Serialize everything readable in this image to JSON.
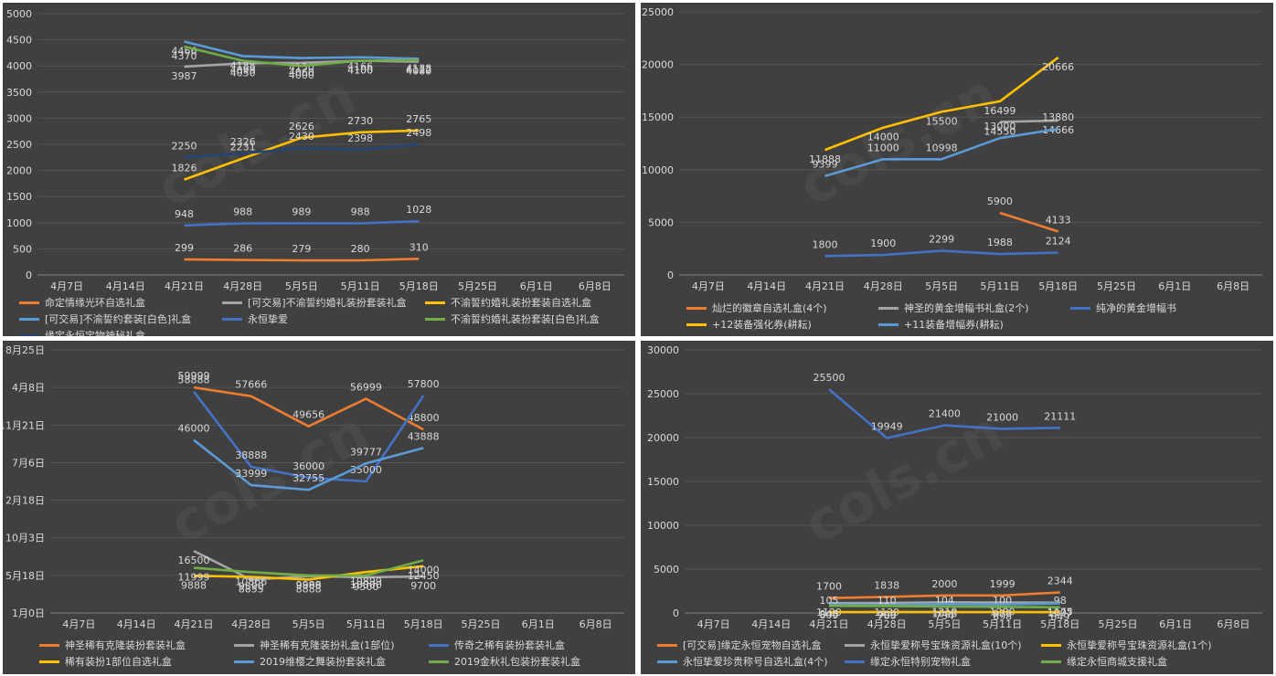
{
  "watermark": "cols.cn",
  "chart_data": [
    {
      "type": "line",
      "x": [
        "4月7日",
        "4月14日",
        "4月21日",
        "4月28日",
        "5月5日",
        "5月11日",
        "5月18日",
        "5月25日",
        "6月1日",
        "6月8日"
      ],
      "ylim": [
        0,
        5000
      ],
      "yticks": [
        "0",
        "500",
        "1000",
        "1500",
        "2000",
        "2500",
        "3000",
        "3500",
        "4000",
        "4500",
        "5000"
      ],
      "series": [
        {
          "name": "命定情缘光环自选礼盒",
          "color": "#ed7d31",
          "values": [
            null,
            null,
            299,
            286,
            279,
            280,
            310,
            null,
            null,
            null
          ]
        },
        {
          "name": "[可交易]不渝誓约婚礼装扮套装礼盒",
          "color": "#a5a5a5",
          "values": [
            null,
            null,
            3987,
            4050,
            4060,
            4100,
            4080,
            null,
            null,
            null
          ]
        },
        {
          "name": "不渝誓约婚礼装扮套装自选礼盒",
          "color": "#ffc000",
          "values": [
            null,
            null,
            1826,
            2231,
            2626,
            2730,
            2765,
            null,
            null,
            null
          ]
        },
        {
          "name": "[可交易]不渝誓约套装[白色]礼盒",
          "color": "#5b9bd5",
          "values": [
            null,
            null,
            4466,
            4188,
            4150,
            4166,
            4138,
            null,
            null,
            null
          ]
        },
        {
          "name": "永恒挚爱",
          "color": "#4472c4",
          "values": [
            null,
            null,
            948,
            988,
            989,
            988,
            1028,
            null,
            null,
            null
          ]
        },
        {
          "name": "不渝誓约婚礼装扮套装[白色]礼盒",
          "color": "#70ad47",
          "values": [
            null,
            null,
            4370,
            4099,
            4000,
            4100,
            4112,
            null,
            null,
            null
          ]
        },
        {
          "name": "缘定永恒宝物神秘礼盒",
          "color": "#264478",
          "values": [
            null,
            null,
            2250,
            2326,
            2430,
            2398,
            2498,
            null,
            null,
            null
          ]
        }
      ]
    },
    {
      "type": "line",
      "x": [
        "4月7日",
        "4月14日",
        "4月21日",
        "4月28日",
        "5月5日",
        "5月11日",
        "5月18日",
        "5月25日",
        "6月1日",
        "6月8日"
      ],
      "ylim": [
        0,
        25000
      ],
      "yticks": [
        "0",
        "5000",
        "10000",
        "15000",
        "20000",
        "25000"
      ],
      "series": [
        {
          "name": "灿烂的徽章自选礼盒(4个)",
          "color": "#ed7d31",
          "values": [
            null,
            null,
            null,
            null,
            null,
            5900,
            4133,
            null,
            null,
            null
          ]
        },
        {
          "name": "神圣的黄金增幅书礼盒(2个)",
          "color": "#a5a5a5",
          "values": [
            null,
            null,
            null,
            null,
            null,
            14550,
            14666,
            null,
            null,
            null
          ]
        },
        {
          "name": "纯净的黄金增幅书",
          "color": "#4472c4",
          "values": [
            null,
            null,
            1800,
            1900,
            2299,
            1988,
            2124,
            null,
            null,
            null
          ]
        },
        {
          "name": "+12装备强化券(耕耘)",
          "color": "#ffc000",
          "values": [
            null,
            null,
            11888,
            14000,
            15500,
            16499,
            20666,
            null,
            null,
            null
          ]
        },
        {
          "name": "+11装备增幅券(耕耘)",
          "color": "#5b9bd5",
          "values": [
            null,
            null,
            9399,
            11000,
            10998,
            13000,
            13880,
            null,
            null,
            null
          ]
        }
      ]
    },
    {
      "type": "line",
      "x": [
        "4月7日",
        "4月14日",
        "4月21日",
        "4月28日",
        "5月5日",
        "5月11日",
        "5月18日",
        "5月25日",
        "6月1日",
        "6月8日"
      ],
      "ylim": [
        0,
        70000
      ],
      "yticks": [
        "1月0日",
        "5月18日",
        "10月3日",
        "2月18日",
        "7月6日",
        "11月21日",
        "4月8日",
        "8月25日"
      ],
      "series": [
        {
          "name": "神圣稀有克隆装扮套装礼盒",
          "color": "#ed7d31",
          "values": [
            null,
            null,
            59999,
            57666,
            49656,
            56999,
            48800,
            null,
            null,
            null
          ]
        },
        {
          "name": "神圣稀有克隆装扮礼盒(1部位)",
          "color": "#a5a5a5",
          "values": [
            null,
            null,
            16500,
            8855,
            9800,
            9500,
            9700,
            null,
            null,
            null
          ]
        },
        {
          "name": "传奇之稀有装扮套装礼盒",
          "color": "#4472c4",
          "values": [
            null,
            null,
            58888,
            38888,
            36000,
            35000,
            57800,
            null,
            null,
            null
          ]
        },
        {
          "name": "稀有装扮1部位自选礼盒",
          "color": "#ffc000",
          "values": [
            null,
            null,
            9888,
            9590,
            8888,
            10899,
            12450,
            null,
            null,
            null
          ]
        },
        {
          "name": "2019维樱之舞装扮套装礼盒",
          "color": "#5b9bd5",
          "values": [
            null,
            null,
            46000,
            33999,
            32755,
            39777,
            43888,
            null,
            null,
            null
          ]
        },
        {
          "name": "2019金秋礼包装扮套装礼盒",
          "color": "#70ad47",
          "values": [
            null,
            null,
            11999,
            10866,
            9988,
            10000,
            14000,
            null,
            null,
            null
          ]
        }
      ]
    },
    {
      "type": "line",
      "x": [
        "4月7日",
        "4月14日",
        "4月21日",
        "4月28日",
        "5月5日",
        "5月11日",
        "5月18日",
        "5月25日",
        "6月1日",
        "6月8日"
      ],
      "ylim": [
        0,
        30000
      ],
      "yticks": [
        "0",
        "5000",
        "10000",
        "15000",
        "20000",
        "25000",
        "30000"
      ],
      "series": [
        {
          "name": "[可交易]缘定永恒宠物自选礼盒",
          "color": "#ed7d31",
          "values": [
            null,
            null,
            1700,
            1838,
            2000,
            1999,
            2344,
            null,
            null,
            null
          ]
        },
        {
          "name": "永恒挚爱称号宝珠资源礼盒(10个)",
          "color": "#a5a5a5",
          "values": [
            null,
            null,
            1129,
            1139,
            1219,
            1200,
            1175,
            null,
            null,
            null
          ]
        },
        {
          "name": "永恒挚爱称号宝珠资源礼盒(1个)",
          "color": "#ffc000",
          "values": [
            null,
            null,
            105,
            110,
            104,
            100,
            98,
            null,
            null,
            null
          ]
        },
        {
          "name": "永恒挚爱珍贵称号自选礼盒(4个)",
          "color": "#5b9bd5",
          "values": [
            null,
            null,
            948,
            909,
            1008,
            979,
            1097,
            null,
            null,
            null
          ]
        },
        {
          "name": "缘定永恒特别宠物礼盒",
          "color": "#4472c4",
          "values": [
            null,
            null,
            25500,
            19949,
            21400,
            21000,
            21111,
            null,
            null,
            null
          ]
        },
        {
          "name": "缘定永恒商城支援礼盒",
          "color": "#70ad47",
          "values": [
            null,
            null,
            809,
            788,
            734,
            698,
            649,
            null,
            null,
            null
          ]
        }
      ]
    }
  ]
}
